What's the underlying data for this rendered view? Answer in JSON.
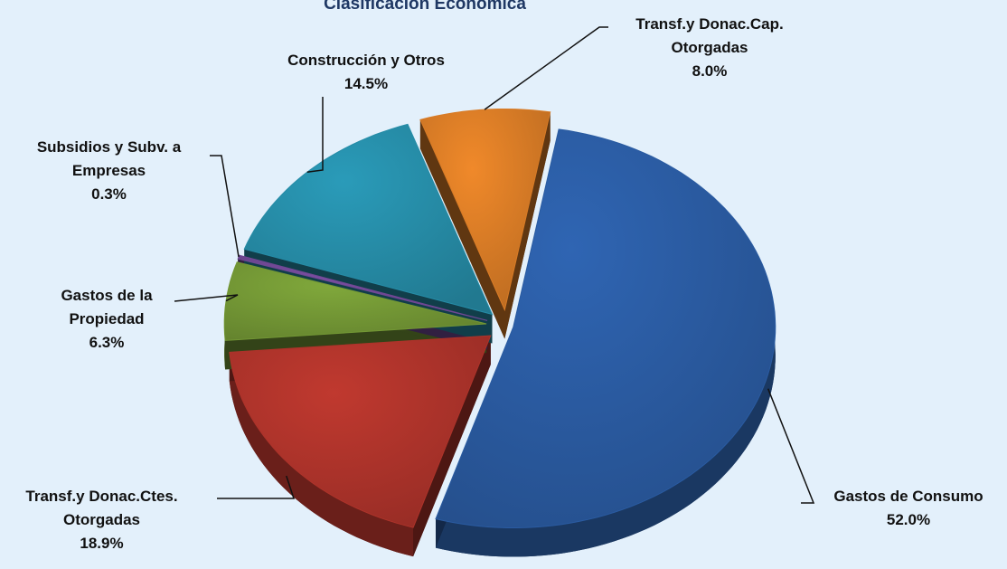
{
  "chart_data": {
    "type": "pie",
    "title": "Clasificación Económica",
    "categories": [
      "Gastos de Consumo",
      "Transf.y Donac.Ctes. Otorgadas",
      "Gastos de la Propiedad",
      "Subsidios y Subv. a Empresas",
      "Construcción y Otros",
      "Transf.y Donac.Cap. Otorgadas"
    ],
    "values": [
      52.0,
      18.9,
      6.3,
      0.3,
      14.5,
      8.0
    ],
    "value_labels": [
      "52.0%",
      "18.9%",
      "6.3%",
      "0.3%",
      "14.5%",
      "8.0%"
    ],
    "colors": [
      "#2f65b3",
      "#c0392f",
      "#80a83b",
      "#7b4fa3",
      "#2a9bb9",
      "#f0892a"
    ]
  }
}
